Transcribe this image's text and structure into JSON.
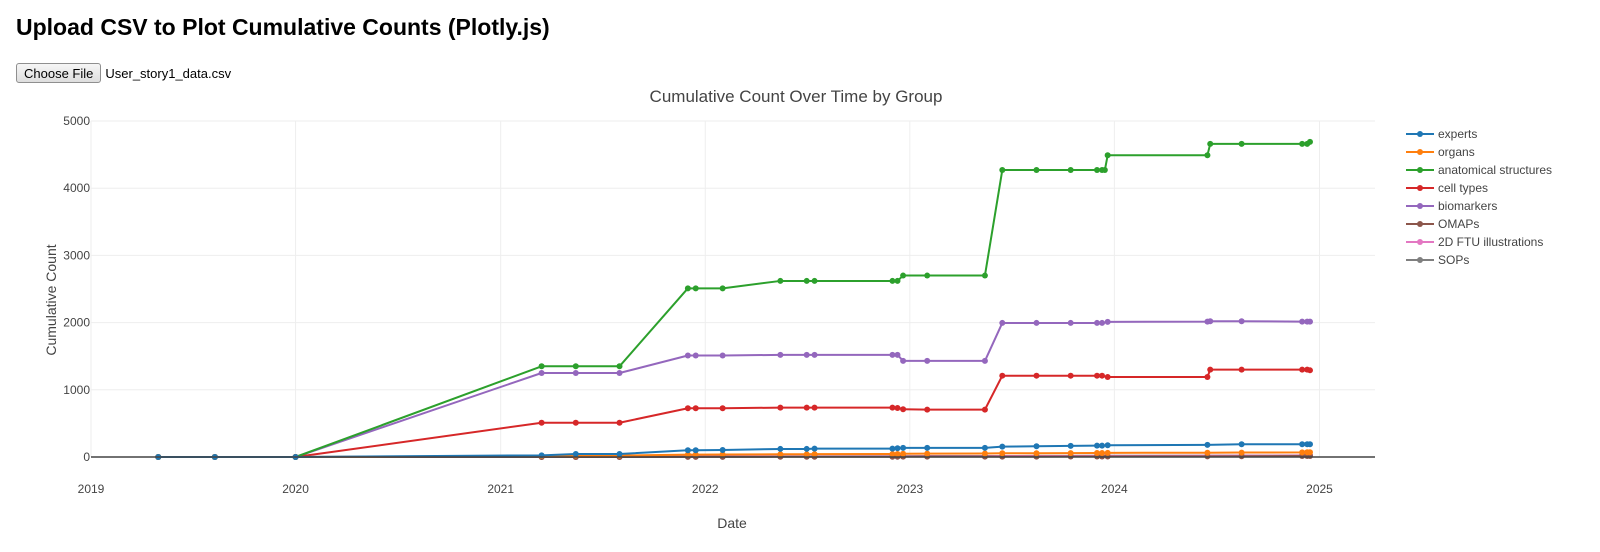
{
  "page": {
    "title": "Upload CSV to Plot Cumulative Counts (Plotly.js)",
    "file_input": {
      "button_label": "Choose File",
      "selected_file": "User_story1_data.csv"
    }
  },
  "chart_data": {
    "type": "line",
    "title": "Cumulative Count Over Time by Group",
    "xlabel": "Date",
    "ylabel": "Cumulative Count",
    "xlim": [
      "2019-01-01",
      "2025-04-10"
    ],
    "ylim": [
      0,
      5000
    ],
    "xticks": [
      "2019",
      "2020",
      "2021",
      "2022",
      "2023",
      "2024",
      "2025"
    ],
    "yticks": [
      0,
      1000,
      2000,
      3000,
      4000,
      5000
    ],
    "grid": true,
    "legend": "right",
    "series": [
      {
        "name": "experts",
        "color": "#1f77b4",
        "x": [
          "2019-05-01",
          "2019-08-10",
          "2020-01-01",
          "2021-03-15",
          "2021-05-15",
          "2021-08-01",
          "2021-12-01",
          "2021-12-15",
          "2022-02-01",
          "2022-05-15",
          "2022-07-01",
          "2022-07-15",
          "2022-12-01",
          "2022-12-10",
          "2022-12-20",
          "2023-02-01",
          "2023-05-15",
          "2023-06-15",
          "2023-08-15",
          "2023-10-15",
          "2023-12-01",
          "2023-12-10",
          "2023-12-20",
          "2024-06-15",
          "2024-08-15",
          "2024-12-01",
          "2024-12-10",
          "2024-12-15"
        ],
        "y": [
          0,
          0,
          0,
          25,
          45,
          45,
          100,
          100,
          105,
          120,
          120,
          125,
          125,
          130,
          135,
          135,
          135,
          155,
          160,
          165,
          170,
          170,
          175,
          180,
          190,
          190,
          190,
          190
        ]
      },
      {
        "name": "organs",
        "color": "#ff7f0e",
        "x": [
          "2019-05-01",
          "2019-08-10",
          "2020-01-01",
          "2021-03-15",
          "2021-05-15",
          "2021-08-01",
          "2021-12-01",
          "2021-12-15",
          "2022-02-01",
          "2022-05-15",
          "2022-07-01",
          "2022-07-15",
          "2022-12-01",
          "2022-12-10",
          "2022-12-20",
          "2023-02-01",
          "2023-05-15",
          "2023-06-15",
          "2023-08-15",
          "2023-10-15",
          "2023-12-01",
          "2023-12-10",
          "2023-12-20",
          "2024-06-15",
          "2024-08-15",
          "2024-12-01",
          "2024-12-10",
          "2024-12-15"
        ],
        "y": [
          0,
          0,
          0,
          15,
          20,
          20,
          35,
          35,
          38,
          40,
          40,
          42,
          45,
          45,
          48,
          50,
          52,
          55,
          55,
          58,
          60,
          60,
          62,
          64,
          66,
          68,
          70,
          70
        ]
      },
      {
        "name": "anatomical structures",
        "color": "#2ca02c",
        "x": [
          "2019-05-01",
          "2019-08-10",
          "2020-01-01",
          "2021-03-15",
          "2021-05-15",
          "2021-08-01",
          "2021-12-01",
          "2021-12-15",
          "2022-02-01",
          "2022-05-15",
          "2022-07-01",
          "2022-07-15",
          "2022-12-01",
          "2022-12-10",
          "2022-12-20",
          "2023-02-01",
          "2023-05-15",
          "2023-06-15",
          "2023-08-15",
          "2023-10-15",
          "2023-12-01",
          "2023-12-10",
          "2023-12-15",
          "2023-12-20",
          "2024-06-15",
          "2024-06-20",
          "2024-08-15",
          "2024-12-01",
          "2024-12-10",
          "2024-12-15"
        ],
        "y": [
          0,
          0,
          0,
          1350,
          1350,
          1350,
          2510,
          2510,
          2510,
          2620,
          2620,
          2620,
          2620,
          2620,
          2700,
          2700,
          2700,
          4270,
          4270,
          4270,
          4270,
          4270,
          4270,
          4490,
          4490,
          4660,
          4660,
          4660,
          4660,
          4690
        ]
      },
      {
        "name": "cell types",
        "color": "#d62728",
        "x": [
          "2019-05-01",
          "2019-08-10",
          "2020-01-01",
          "2021-03-15",
          "2021-05-15",
          "2021-08-01",
          "2021-12-01",
          "2021-12-15",
          "2022-02-01",
          "2022-05-15",
          "2022-07-01",
          "2022-07-15",
          "2022-12-01",
          "2022-12-10",
          "2022-12-20",
          "2023-02-01",
          "2023-05-15",
          "2023-06-15",
          "2023-08-15",
          "2023-10-15",
          "2023-12-01",
          "2023-12-10",
          "2023-12-20",
          "2024-06-15",
          "2024-06-20",
          "2024-08-15",
          "2024-12-01",
          "2024-12-10",
          "2024-12-15"
        ],
        "y": [
          0,
          0,
          0,
          510,
          510,
          510,
          725,
          725,
          725,
          735,
          735,
          735,
          735,
          730,
          710,
          705,
          705,
          1210,
          1210,
          1210,
          1210,
          1210,
          1190,
          1190,
          1300,
          1300,
          1300,
          1300,
          1290
        ]
      },
      {
        "name": "biomarkers",
        "color": "#9467bd",
        "x": [
          "2019-05-01",
          "2019-08-10",
          "2020-01-01",
          "2021-03-15",
          "2021-05-15",
          "2021-08-01",
          "2021-12-01",
          "2021-12-15",
          "2022-02-01",
          "2022-05-15",
          "2022-07-01",
          "2022-07-15",
          "2022-12-01",
          "2022-12-10",
          "2022-12-20",
          "2023-02-01",
          "2023-05-15",
          "2023-06-15",
          "2023-08-15",
          "2023-10-15",
          "2023-12-01",
          "2023-12-10",
          "2023-12-20",
          "2024-06-15",
          "2024-06-20",
          "2024-08-15",
          "2024-12-01",
          "2024-12-10",
          "2024-12-15"
        ],
        "y": [
          0,
          0,
          0,
          1250,
          1250,
          1250,
          1510,
          1510,
          1510,
          1520,
          1520,
          1520,
          1520,
          1520,
          1430,
          1430,
          1430,
          1995,
          1995,
          1995,
          1995,
          1995,
          2010,
          2015,
          2020,
          2020,
          2015,
          2015,
          2015
        ]
      },
      {
        "name": "OMAPs",
        "color": "#8c564b",
        "x": [
          "2019-05-01",
          "2019-08-10",
          "2020-01-01",
          "2021-03-15",
          "2021-05-15",
          "2021-08-01",
          "2021-12-01",
          "2021-12-15",
          "2022-02-01",
          "2022-05-15",
          "2022-07-01",
          "2022-07-15",
          "2022-12-01",
          "2022-12-10",
          "2022-12-20",
          "2023-02-01",
          "2023-05-15",
          "2023-06-15",
          "2023-08-15",
          "2023-10-15",
          "2023-12-01",
          "2023-12-10",
          "2023-12-20",
          "2024-06-15",
          "2024-08-15",
          "2024-12-01",
          "2024-12-10",
          "2024-12-15"
        ],
        "y": [
          0,
          0,
          0,
          0,
          0,
          0,
          2,
          2,
          2,
          3,
          3,
          3,
          4,
          4,
          5,
          5,
          5,
          6,
          6,
          7,
          8,
          8,
          8,
          10,
          12,
          14,
          14,
          15
        ]
      },
      {
        "name": "2D FTU illustrations",
        "color": "#e377c2",
        "x": [
          "2019-05-01",
          "2019-08-10",
          "2020-01-01",
          "2021-03-15",
          "2021-05-15",
          "2021-08-01",
          "2021-12-01",
          "2021-12-15",
          "2022-02-01",
          "2022-05-15",
          "2022-07-01",
          "2022-07-15",
          "2022-12-01",
          "2022-12-10",
          "2022-12-20",
          "2023-02-01",
          "2023-05-15",
          "2023-06-15",
          "2023-08-15",
          "2023-10-15",
          "2023-12-01",
          "2023-12-10",
          "2023-12-20",
          "2024-06-15",
          "2024-08-15",
          "2024-12-01",
          "2024-12-10",
          "2024-12-15"
        ],
        "y": [
          0,
          0,
          0,
          0,
          0,
          0,
          5,
          5,
          5,
          8,
          8,
          8,
          10,
          10,
          10,
          12,
          12,
          14,
          14,
          15,
          16,
          16,
          16,
          18,
          20,
          22,
          22,
          22
        ]
      },
      {
        "name": "SOPs",
        "color": "#7f7f7f",
        "x": [
          "2019-05-01",
          "2019-08-10",
          "2020-01-01",
          "2021-03-15",
          "2021-05-15",
          "2021-08-01",
          "2021-12-01",
          "2021-12-15",
          "2022-02-01",
          "2022-05-15",
          "2022-07-01",
          "2022-07-15",
          "2022-12-01",
          "2022-12-10",
          "2022-12-20",
          "2023-02-01",
          "2023-05-15",
          "2023-06-15",
          "2023-08-15",
          "2023-10-15",
          "2023-12-01",
          "2023-12-10",
          "2023-12-20",
          "2024-06-15",
          "2024-08-15",
          "2024-12-01",
          "2024-12-10",
          "2024-12-15"
        ],
        "y": [
          0,
          0,
          0,
          3,
          5,
          5,
          8,
          8,
          8,
          10,
          10,
          10,
          12,
          12,
          12,
          14,
          14,
          15,
          16,
          17,
          18,
          18,
          18,
          20,
          22,
          24,
          24,
          25
        ]
      }
    ]
  }
}
